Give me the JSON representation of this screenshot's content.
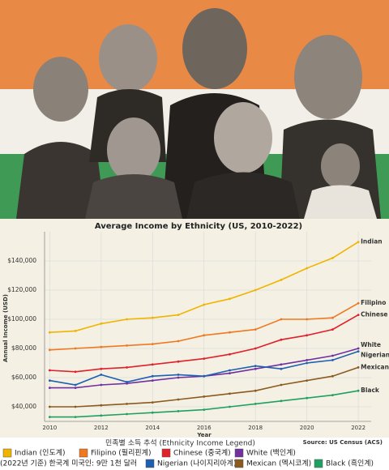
{
  "chart_data": {
    "type": "line",
    "title": "Average Income by Ethnicity (US, 2010-2022)",
    "x_label": "Year",
    "y_label": "Annual Income (USD)",
    "legend_title": "민족별 소득 추석 (Ethnicity Income Legend)",
    "source": "Source: US Census (ACS)",
    "note": "(2022년 기준) 한국계 미국인: 9만 1천 달러",
    "x": [
      2010,
      2011,
      2012,
      2013,
      2014,
      2015,
      2016,
      2017,
      2018,
      2019,
      2020,
      2021,
      2022
    ],
    "xlim": [
      2009.8,
      2022.5
    ],
    "xticks": [
      2010,
      2012,
      2014,
      2016,
      2018,
      2020,
      2022
    ],
    "ylim": [
      30000,
      160000
    ],
    "yticks": [
      {
        "value": 40000,
        "label": "$40,000"
      },
      {
        "value": 60000,
        "label": "$60,000"
      },
      {
        "value": 80000,
        "label": "$80,000"
      },
      {
        "value": 100000,
        "label": "$100,000"
      },
      {
        "value": 120000,
        "label": "$120,000"
      },
      {
        "value": 140000,
        "label": "$140,000"
      }
    ],
    "grid": true,
    "series": [
      {
        "name": "Indian",
        "legend": "Indian (인도계)",
        "color": "#f0b400",
        "values": [
          91000,
          92000,
          97000,
          100000,
          101000,
          103000,
          110000,
          114000,
          120000,
          127000,
          135000,
          142000,
          153000
        ]
      },
      {
        "name": "Filipino",
        "legend": "Filipino (필리핀계)",
        "color": "#f07820",
        "values": [
          79000,
          80000,
          81000,
          82000,
          83000,
          85000,
          89000,
          91000,
          93000,
          100000,
          100000,
          101000,
          111000
        ]
      },
      {
        "name": "Chinese",
        "legend": "Chinese (중국계)",
        "color": "#e0202a",
        "values": [
          65000,
          64000,
          66000,
          67000,
          69000,
          71000,
          73000,
          76000,
          80000,
          86000,
          89000,
          93000,
          103000
        ]
      },
      {
        "name": "White",
        "legend": "White (백인계)",
        "color": "#7030a0",
        "values": [
          53000,
          53000,
          55000,
          56000,
          58000,
          60000,
          61000,
          63000,
          66000,
          69000,
          72000,
          75000,
          80000
        ]
      },
      {
        "name": "Nigerian",
        "legend": "Nigerian (나이지리아계)",
        "color": "#1f5fb0",
        "values": [
          58000,
          55000,
          62000,
          57000,
          61000,
          62000,
          61000,
          65000,
          68000,
          66000,
          70000,
          72000,
          78000
        ]
      },
      {
        "name": "Mexican",
        "legend": "Mexican (멕시코계)",
        "color": "#8b5a1e",
        "values": [
          40000,
          40000,
          41000,
          42000,
          43000,
          45000,
          47000,
          49000,
          51000,
          55000,
          58000,
          61000,
          67000
        ]
      },
      {
        "name": "Black",
        "legend": "Black (흑인계)",
        "color": "#20a060",
        "values": [
          33000,
          33000,
          34000,
          35000,
          36000,
          37000,
          38000,
          40000,
          42000,
          44000,
          46000,
          48000,
          51000
        ]
      }
    ]
  }
}
